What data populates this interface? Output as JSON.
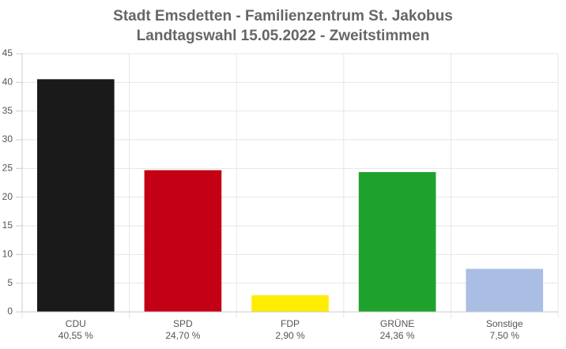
{
  "chart_data": {
    "type": "bar",
    "title": [
      "Stadt Emsdetten - Familienzentrum St. Jakobus",
      "Landtagswahl 15.05.2022  - Zweitstimmen"
    ],
    "categories": [
      "CDU",
      "SPD",
      "FDP",
      "GRÜNE",
      "Sonstige"
    ],
    "values": [
      40.55,
      24.7,
      2.9,
      24.36,
      7.5
    ],
    "value_labels": [
      "40,55 %",
      "24,70 %",
      "2,90 %",
      "24,36 %",
      "7,50 %"
    ],
    "colors": [
      "#1a1a1a",
      "#c30014",
      "#ffed00",
      "#1ea22d",
      "#aabde3"
    ],
    "ylim": [
      0,
      45
    ],
    "yticks": [
      0,
      5,
      10,
      15,
      20,
      25,
      30,
      35,
      40,
      45
    ],
    "grid": true
  }
}
